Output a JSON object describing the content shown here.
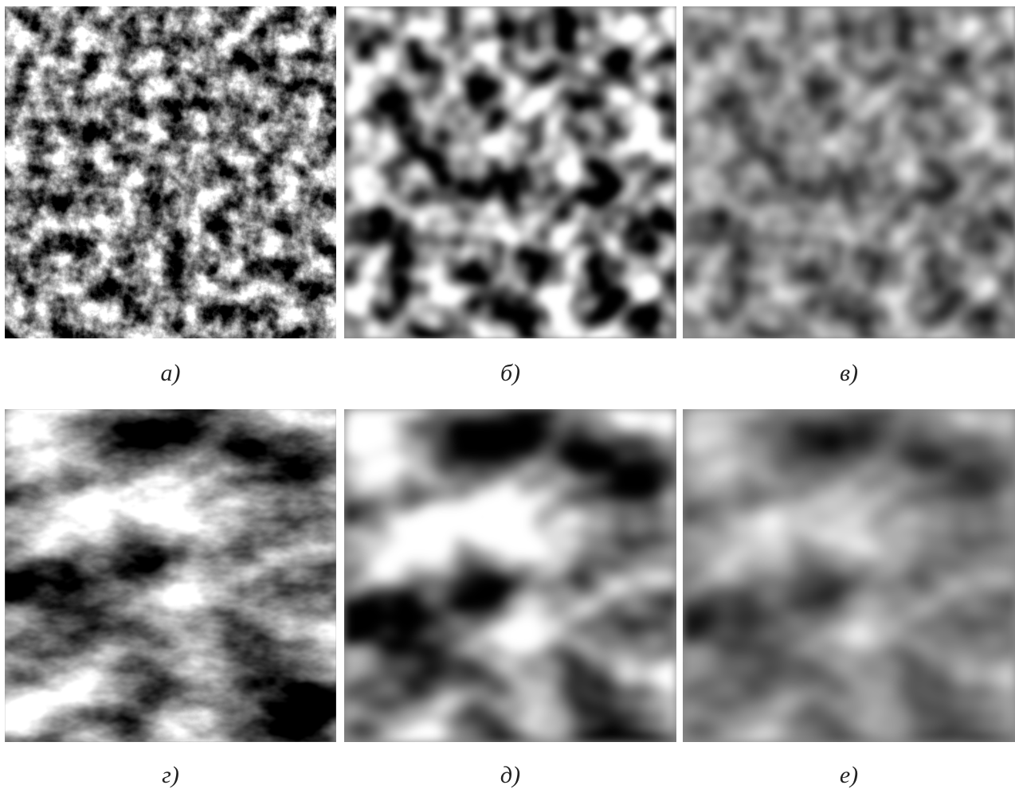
{
  "figure": {
    "panels": [
      {
        "label": "а)"
      },
      {
        "label": "б)"
      },
      {
        "label": "в)"
      },
      {
        "label": "г)"
      },
      {
        "label": "д)"
      },
      {
        "label": "е)"
      }
    ]
  }
}
